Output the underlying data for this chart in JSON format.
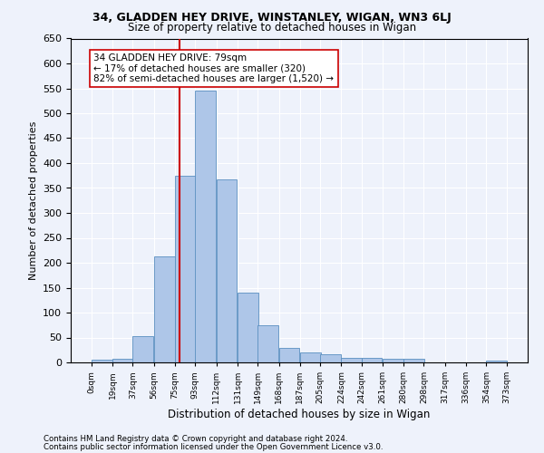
{
  "title1": "34, GLADDEN HEY DRIVE, WINSTANLEY, WIGAN, WN3 6LJ",
  "title2": "Size of property relative to detached houses in Wigan",
  "xlabel": "Distribution of detached houses by size in Wigan",
  "ylabel": "Number of detached properties",
  "footer1": "Contains HM Land Registry data © Crown copyright and database right 2024.",
  "footer2": "Contains public sector information licensed under the Open Government Licence v3.0.",
  "annotation_title": "34 GLADDEN HEY DRIVE: 79sqm",
  "annotation_line1": "← 17% of detached houses are smaller (320)",
  "annotation_line2": "82% of semi-detached houses are larger (1,520) →",
  "property_size": 79,
  "bar_left_edges": [
    0,
    19,
    37,
    56,
    75,
    93,
    112,
    131,
    149,
    168,
    187,
    205,
    224,
    242,
    261,
    280,
    298,
    317,
    336,
    354
  ],
  "bar_heights": [
    5,
    8,
    53,
    213,
    375,
    545,
    368,
    140,
    75,
    30,
    20,
    16,
    10,
    10,
    8,
    8,
    0,
    0,
    0,
    3
  ],
  "bin_width": 18.5,
  "tick_labels": [
    "0sqm",
    "19sqm",
    "37sqm",
    "56sqm",
    "75sqm",
    "93sqm",
    "112sqm",
    "131sqm",
    "149sqm",
    "168sqm",
    "187sqm",
    "205sqm",
    "224sqm",
    "242sqm",
    "261sqm",
    "280sqm",
    "298sqm",
    "317sqm",
    "336sqm",
    "354sqm",
    "373sqm"
  ],
  "bar_color": "#aec6e8",
  "bar_edge_color": "#5a8fc0",
  "vline_color": "#cc0000",
  "vline_x": 79,
  "annotation_box_color": "#cc0000",
  "background_color": "#eef2fb",
  "grid_color": "#ffffff",
  "ylim": [
    0,
    650
  ],
  "yticks": [
    0,
    50,
    100,
    150,
    200,
    250,
    300,
    350,
    400,
    450,
    500,
    550,
    600,
    650
  ]
}
